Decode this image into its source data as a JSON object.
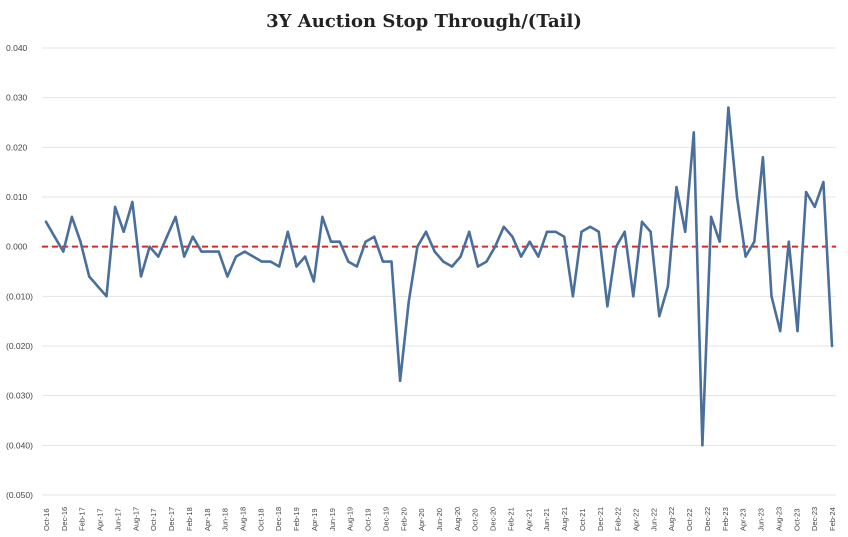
{
  "chart_data": {
    "type": "line",
    "title": "3Y Auction Stop Through/(Tail)",
    "xlabel": "",
    "ylabel": "",
    "ylim": [
      -0.05,
      0.04
    ],
    "y_ticks": [
      "0.040",
      "0.030",
      "0.020",
      "0.010",
      "0.000",
      "(0.010)",
      "(0.020)",
      "(0.030)",
      "(0.040)",
      "(0.050)"
    ],
    "y_tick_values": [
      0.04,
      0.03,
      0.02,
      0.01,
      0.0,
      -0.01,
      -0.02,
      -0.03,
      -0.04,
      -0.05
    ],
    "x_tick_labels": [
      "Oct-16",
      "Dec-16",
      "Feb-17",
      "Apr-17",
      "Jun-17",
      "Aug-17",
      "Oct-17",
      "Dec-17",
      "Feb-18",
      "Apr-18",
      "Jun-18",
      "Aug-18",
      "Oct-18",
      "Dec-18",
      "Feb-19",
      "Apr-19",
      "Jun-19",
      "Aug-19",
      "Oct-19",
      "Dec-19",
      "Feb-20",
      "Apr-20",
      "Jun-20",
      "Aug-20",
      "Oct-20",
      "Dec-20",
      "Feb-21",
      "Apr-21",
      "Jun-21",
      "Aug-21",
      "Oct-21",
      "Dec-21",
      "Feb-22",
      "Apr-22",
      "Jun-22",
      "Aug-22",
      "Oct-22",
      "Dec-22",
      "Feb-23",
      "Apr-23",
      "Jun-23",
      "Aug-23",
      "Oct-23",
      "Dec-23",
      "Feb-24"
    ],
    "reference_line": {
      "y": 0.0,
      "style": "dashed",
      "color": "#d42a2a"
    },
    "series": [
      {
        "name": "3Y Auction Stop Through/(Tail)",
        "color": "#4a6f9c",
        "values": [
          0.005,
          0.002,
          -0.001,
          0.006,
          0.001,
          -0.006,
          -0.008,
          -0.01,
          0.008,
          0.003,
          0.009,
          -0.006,
          0.0,
          -0.002,
          0.002,
          0.006,
          -0.002,
          0.002,
          -0.001,
          -0.001,
          -0.001,
          -0.006,
          -0.002,
          -0.001,
          -0.002,
          -0.003,
          -0.003,
          -0.004,
          0.003,
          -0.004,
          -0.002,
          -0.007,
          0.006,
          0.001,
          0.001,
          -0.003,
          -0.004,
          0.001,
          0.002,
          -0.003,
          -0.003,
          -0.027,
          -0.011,
          0.0,
          0.003,
          -0.001,
          -0.003,
          -0.004,
          -0.002,
          0.003,
          -0.004,
          -0.003,
          0.0,
          0.004,
          0.002,
          -0.002,
          0.001,
          -0.002,
          0.003,
          0.003,
          0.002,
          -0.01,
          0.003,
          0.004,
          0.003,
          -0.012,
          0.0,
          0.003,
          -0.01,
          0.005,
          0.003,
          -0.014,
          -0.008,
          0.012,
          0.003,
          0.023,
          -0.04,
          0.006,
          0.001,
          0.028,
          0.01,
          -0.002,
          0.001,
          0.018,
          -0.01,
          -0.017,
          0.001,
          -0.017,
          0.011,
          0.008,
          0.013,
          -0.02
        ]
      }
    ]
  }
}
